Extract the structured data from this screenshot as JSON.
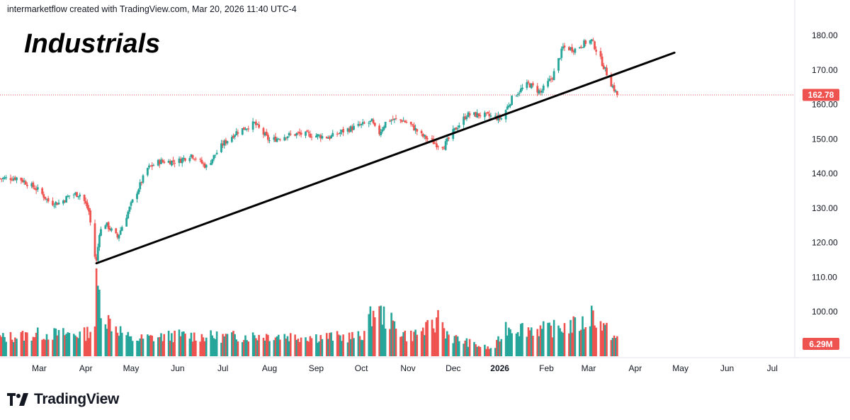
{
  "header": {
    "attribution": "intermarketflow created with TradingView.com, Mar 20, 2026 11:40 UTC-4"
  },
  "footer": {
    "brand": "TradingView"
  },
  "colors": {
    "up": "#26a69a",
    "down": "#ef5350",
    "trendline": "#000000",
    "price_line": "#ef5350",
    "axis_text": "#131722"
  },
  "chart_data": {
    "type": "candlestick",
    "title": "Industrials",
    "x_labels": [
      {
        "label": "Mar",
        "date": "2025-03-01"
      },
      {
        "label": "Apr",
        "date": "2025-04-01"
      },
      {
        "label": "May",
        "date": "2025-05-01"
      },
      {
        "label": "Jun",
        "date": "2025-06-01"
      },
      {
        "label": "Jul",
        "date": "2025-07-01"
      },
      {
        "label": "Aug",
        "date": "2025-08-01"
      },
      {
        "label": "Sep",
        "date": "2025-09-01"
      },
      {
        "label": "Oct",
        "date": "2025-10-01"
      },
      {
        "label": "Nov",
        "date": "2025-11-01"
      },
      {
        "label": "Dec",
        "date": "2025-12-01"
      },
      {
        "label": "2026",
        "date": "2026-01-01",
        "bold": true
      },
      {
        "label": "Feb",
        "date": "2026-02-01"
      },
      {
        "label": "Mar",
        "date": "2026-03-01"
      },
      {
        "label": "Apr",
        "date": "2026-04-01"
      },
      {
        "label": "May",
        "date": "2026-05-01"
      },
      {
        "label": "Jun",
        "date": "2026-06-01"
      },
      {
        "label": "Jul",
        "date": "2026-07-01"
      }
    ],
    "y_ticks": [
      100,
      110,
      120,
      130,
      140,
      150,
      160,
      170,
      180
    ],
    "y_tick_labels": [
      "100.00",
      "110.00",
      "120.00",
      "130.00",
      "140.00",
      "150.00",
      "160.00",
      "170.00",
      "180.00"
    ],
    "ylim": [
      94.6,
      182.6
    ],
    "last_price": 162.78,
    "last_price_label": "162.78",
    "volume_label": "6.29M",
    "trendline": {
      "start": {
        "date": "2025-04-08",
        "price": 114.0
      },
      "end": {
        "date": "2026-04-27",
        "price": 175.0
      }
    },
    "price_series": {
      "dates": [
        "2025-02-01",
        "2025-02-15",
        "2025-03-01",
        "2025-03-08",
        "2025-03-15",
        "2025-03-22",
        "2025-03-29",
        "2025-04-03",
        "2025-04-07",
        "2025-04-08",
        "2025-04-10",
        "2025-04-14",
        "2025-04-22",
        "2025-05-01",
        "2025-05-12",
        "2025-05-20",
        "2025-06-01",
        "2025-06-10",
        "2025-06-20",
        "2025-07-01",
        "2025-07-10",
        "2025-07-22",
        "2025-08-01",
        "2025-08-12",
        "2025-08-20",
        "2025-09-01",
        "2025-09-10",
        "2025-09-20",
        "2025-10-01",
        "2025-10-08",
        "2025-10-12",
        "2025-10-18",
        "2025-10-28",
        "2025-11-03",
        "2025-11-10",
        "2025-11-20",
        "2025-11-25",
        "2025-12-01",
        "2025-12-10",
        "2025-12-20",
        "2026-01-02",
        "2026-01-10",
        "2026-01-20",
        "2026-01-28",
        "2026-02-05",
        "2026-02-12",
        "2026-02-20",
        "2026-02-27",
        "2026-03-03",
        "2026-03-07",
        "2026-03-12",
        "2026-03-16",
        "2026-03-20"
      ],
      "values": [
        138.5,
        138.8,
        135.0,
        131.5,
        131.5,
        134.0,
        134.0,
        129.0,
        116.0,
        114.5,
        123.0,
        125.5,
        121.5,
        131.0,
        141.5,
        143.5,
        143.5,
        145.5,
        142.0,
        148.5,
        152.0,
        154.5,
        149.5,
        151.0,
        151.5,
        151.0,
        150.5,
        152.5,
        154.0,
        155.0,
        151.0,
        155.5,
        155.5,
        154.0,
        151.0,
        148.5,
        148.0,
        152.0,
        157.0,
        157.0,
        156.0,
        162.5,
        166.0,
        163.5,
        168.0,
        176.5,
        176.0,
        178.0,
        178.5,
        175.0,
        170.0,
        166.0,
        162.78
      ]
    },
    "volume_series": {
      "ylim": [
        0,
        105
      ],
      "dates": [
        "2025-02-01",
        "2025-03-01",
        "2025-04-01",
        "2025-04-07",
        "2025-04-08",
        "2025-04-09",
        "2025-04-14",
        "2025-05-01",
        "2025-06-01",
        "2025-07-01",
        "2025-08-01",
        "2025-09-01",
        "2025-10-01",
        "2025-10-10",
        "2025-11-01",
        "2025-11-20",
        "2025-11-21",
        "2025-11-25",
        "2025-12-01",
        "2025-12-20",
        "2025-12-28",
        "2026-01-05",
        "2026-02-01",
        "2026-03-01",
        "2026-03-03",
        "2026-03-10",
        "2026-03-20"
      ],
      "values": [
        26,
        32,
        32,
        46,
        100,
        95,
        55,
        24,
        30,
        28,
        30,
        28,
        28,
        68,
        28,
        45,
        77,
        38,
        26,
        14,
        10,
        42,
        38,
        48,
        63,
        43,
        24
      ]
    }
  }
}
